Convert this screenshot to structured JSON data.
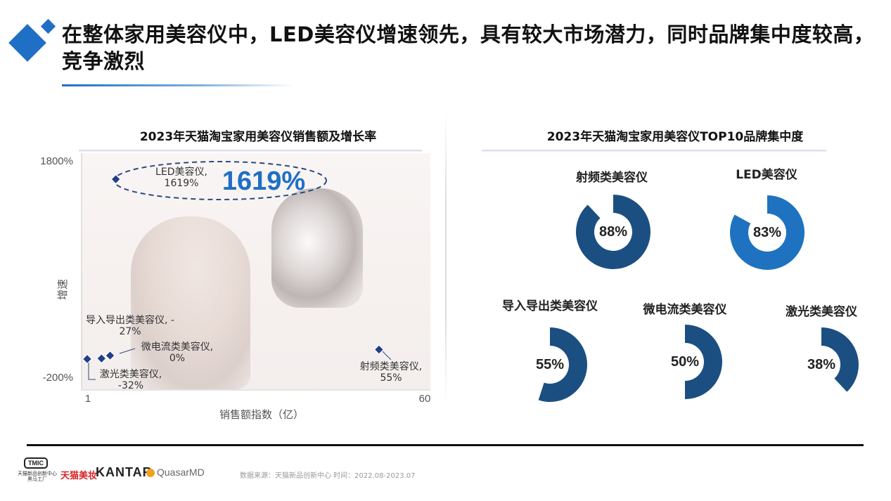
{
  "header": {
    "title": "在整体家用美容仪中，LED美容仪增速领先，具有较大市场潜力，同时品牌集中度较高，竞争激烈"
  },
  "chart_data": [
    {
      "type": "scatter",
      "title": "2023年天猫淘宝家用美容仪销售额及增长率",
      "xlabel": "销售额指数（亿）",
      "ylabel": "增速",
      "xlim": [
        1,
        60
      ],
      "ylim": [
        -200,
        1800
      ],
      "x_ticks": [
        "1",
        "60"
      ],
      "y_ticks": [
        "1800%",
        "-200%"
      ],
      "points": [
        {
          "x": 6,
          "y": 1619,
          "label_name": "LED美容仪,",
          "label_value": "1619%",
          "marker_color": "#1f3f87"
        },
        {
          "x": 3.5,
          "y": -27,
          "label_name": "导入导出类美容仪, -",
          "label_value": "27%",
          "marker_color": "#1f3f87"
        },
        {
          "x": 5,
          "y": 0,
          "label_name": "微电流类美容仪,",
          "label_value": "0%",
          "marker_color": "#1f3f87"
        },
        {
          "x": 1,
          "y": -32,
          "label_name": "激光类美容仪,",
          "label_value": "-32%",
          "marker_color": "#1f3f87"
        },
        {
          "x": 52,
          "y": 55,
          "label_name": "射频类美容仪,",
          "label_value": "55%",
          "marker_color": "#1f3f87"
        }
      ],
      "callout": "1619%"
    },
    {
      "type": "pie",
      "subtype": "donut",
      "title": "2023年天猫淘宝家用美容仪TOP10品牌集中度",
      "items": [
        {
          "name": "射频类美容仪",
          "value": 88,
          "label": "88%",
          "color": "#1b4f82"
        },
        {
          "name": "LED美容仪",
          "value": 83,
          "label": "83%",
          "color": "#1f72bf"
        },
        {
          "name": "导入导出类美容仪",
          "value": 55,
          "label": "55%",
          "color": "#1b4f82"
        },
        {
          "name": "微电流类美容仪",
          "value": 50,
          "label": "50%",
          "color": "#1b4f82"
        },
        {
          "name": "激光类美容仪",
          "value": 38,
          "label": "38%",
          "color": "#1b4f82"
        }
      ]
    }
  ],
  "footer": {
    "tmic": "TMIC",
    "tmic_sub": "天猫新品创新中心 黑马工厂",
    "tmall_beauty": "天猫美妆",
    "kantar": "KANTAR",
    "quasar": "QuasarMD",
    "source": "数据来源：天猫新品创新中心 时间：2022.08-2023.07"
  }
}
